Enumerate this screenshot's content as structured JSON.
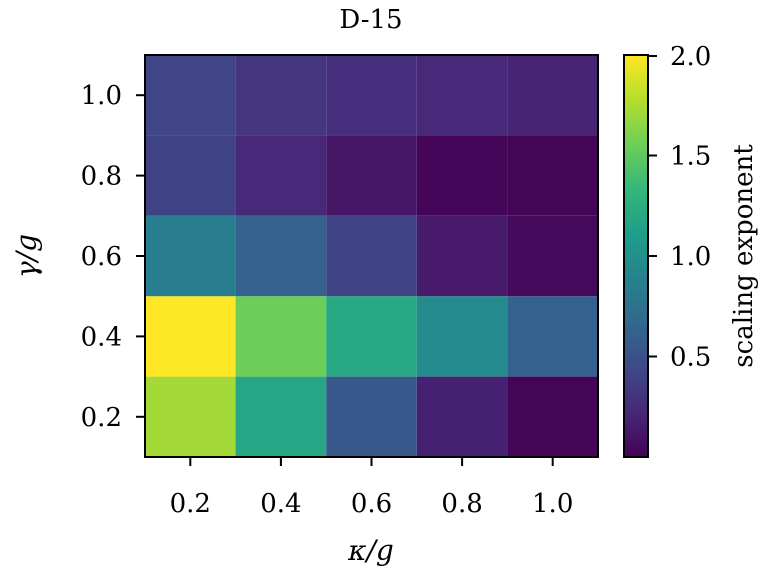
{
  "chart_data": {
    "type": "heatmap",
    "title": "D-15",
    "xlabel": "κ/g",
    "ylabel": "γ/g",
    "x": [
      0.2,
      0.4,
      0.6,
      0.8,
      1.0
    ],
    "y": [
      0.2,
      0.4,
      0.6,
      0.8,
      1.0
    ],
    "x_tick_labels": [
      "0.2",
      "0.4",
      "0.6",
      "0.8",
      "1.0"
    ],
    "y_tick_labels": [
      "0.2",
      "0.4",
      "0.6",
      "0.8",
      "1.0"
    ],
    "xlim": [
      0.1,
      1.1
    ],
    "ylim": [
      0.1,
      1.1
    ],
    "values": [
      [
        1.72,
        1.18,
        0.55,
        0.18,
        0.02
      ],
      [
        2.0,
        1.55,
        1.2,
        0.95,
        0.62
      ],
      [
        0.85,
        0.62,
        0.4,
        0.14,
        0.05
      ],
      [
        0.4,
        0.22,
        0.12,
        0.03,
        0.02
      ],
      [
        0.42,
        0.32,
        0.27,
        0.22,
        0.2
      ]
    ],
    "values_orientation": "rows are y (first row y=0.2), columns are x",
    "colorbar": {
      "label": "scaling exponent",
      "colormap": "viridis",
      "vmin": 0.0,
      "vmax": 2.0,
      "ticks": [
        0.5,
        1.0,
        1.5,
        2.0
      ],
      "tick_labels": [
        "0.5",
        "1.0",
        "1.5",
        "2.0"
      ]
    },
    "grid": false
  }
}
